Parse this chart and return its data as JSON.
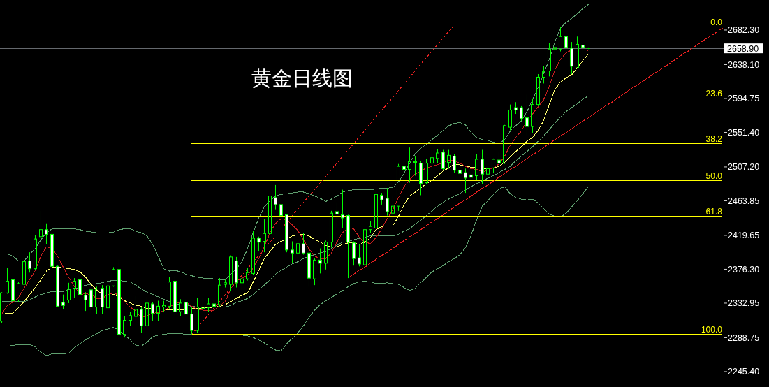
{
  "chart_data": {
    "type": "candlestick",
    "title": "黄金日线图",
    "tick_labels": "y",
    "color": "#00ff00",
    "categories": [
      null,
      null,
      null,
      null,
      null,
      null,
      null,
      null,
      null,
      null,
      null,
      null,
      null,
      null,
      null,
      null,
      null,
      null,
      null,
      null,
      null,
      null,
      null,
      null,
      null,
      null,
      null,
      null,
      null,
      null,
      null,
      null,
      null,
      null,
      null,
      null,
      null,
      null,
      null,
      null,
      null,
      null,
      null,
      null,
      null,
      null,
      null,
      null,
      null,
      null,
      null,
      null,
      null,
      null,
      null,
      null,
      null,
      null,
      null,
      null,
      null,
      null,
      null,
      null,
      null,
      null,
      null,
      null,
      null,
      null,
      null,
      null,
      null,
      null,
      null,
      null,
      null,
      null,
      null,
      null,
      null,
      null,
      null,
      null,
      null,
      null,
      null,
      null,
      null,
      null,
      null,
      null,
      null,
      null,
      null,
      null,
      null,
      null,
      null,
      null,
      null,
      null,
      null,
      null,
      null,
      null,
      null,
      null,
      null,
      null,
      null,
      null,
      null,
      null,
      null,
      null,
      null,
      null,
      null,
      null,
      null,
      null,
      null,
      null,
      null,
      null,
      null,
      null,
      null,
      null
    ],
    "ohlc": [
      [
        2310,
        2347,
        2307,
        2346
      ],
      [
        2346,
        2378,
        2345,
        2361
      ],
      [
        2363,
        2365,
        2334,
        2336
      ],
      [
        2337,
        2360,
        2334,
        2358
      ],
      [
        2357,
        2391,
        2356,
        2386
      ],
      [
        2387,
        2398,
        2372,
        2377
      ],
      [
        2377,
        2420,
        2375,
        2415
      ],
      [
        2418,
        2451,
        2405,
        2427
      ],
      [
        2427,
        2435,
        2408,
        2421
      ],
      [
        2421,
        2427,
        2375,
        2380
      ],
      [
        2380,
        2381,
        2328,
        2329
      ],
      [
        2334,
        2344,
        2325,
        2330
      ],
      [
        2337,
        2359,
        2333,
        2351
      ],
      [
        2352,
        2365,
        2340,
        2361
      ],
      [
        2363,
        2365,
        2335,
        2344
      ],
      [
        2343,
        2347,
        2323,
        2337
      ],
      [
        2350,
        2353,
        2320,
        2328
      ],
      [
        2328,
        2354,
        2319,
        2351
      ],
      [
        2352,
        2356,
        2319,
        2328
      ],
      [
        2327,
        2359,
        2325,
        2355
      ],
      [
        2355,
        2379,
        2354,
        2376
      ],
      [
        2376,
        2389,
        2287,
        2293
      ],
      [
        2293,
        2316,
        2289,
        2311
      ],
      [
        2311,
        2322,
        2304,
        2317
      ],
      [
        2316,
        2342,
        2311,
        2325
      ],
      [
        2325,
        2328,
        2295,
        2304
      ],
      [
        2304,
        2341,
        2302,
        2333
      ],
      [
        2332,
        2334,
        2310,
        2320
      ],
      [
        2320,
        2336,
        2310,
        2329
      ],
      [
        2328,
        2336,
        2322,
        2330
      ],
      [
        2329,
        2366,
        2326,
        2360
      ],
      [
        2361,
        2368,
        2316,
        2322
      ],
      [
        2322,
        2338,
        2316,
        2333
      ],
      [
        2334,
        2338,
        2315,
        2319
      ],
      [
        2319,
        2328,
        2293,
        2298
      ],
      [
        2298,
        2340,
        2295,
        2328
      ],
      [
        2326,
        2340,
        2322,
        2328
      ],
      [
        2327,
        2340,
        2322,
        2332
      ],
      [
        2332,
        2337,
        2325,
        2329
      ],
      [
        2331,
        2365,
        2328,
        2356
      ],
      [
        2357,
        2363,
        2353,
        2359
      ],
      [
        2357,
        2394,
        2348,
        2392
      ],
      [
        2387,
        2392,
        2353,
        2359
      ],
      [
        2359,
        2369,
        2350,
        2364
      ],
      [
        2364,
        2378,
        2362,
        2372
      ],
      [
        2371,
        2425,
        2369,
        2416
      ],
      [
        2416,
        2418,
        2399,
        2411
      ],
      [
        2412,
        2441,
        2398,
        2422
      ],
      [
        2422,
        2471,
        2420,
        2470
      ],
      [
        2468,
        2484,
        2453,
        2459
      ],
      [
        2459,
        2476,
        2442,
        2445
      ],
      [
        2446,
        2447,
        2398,
        2401
      ],
      [
        2401,
        2412,
        2384,
        2397
      ],
      [
        2397,
        2412,
        2388,
        2409
      ],
      [
        2409,
        2423,
        2395,
        2397
      ],
      [
        2397,
        2401,
        2354,
        2365
      ],
      [
        2364,
        2390,
        2356,
        2388
      ],
      [
        2388,
        2403,
        2371,
        2384
      ],
      [
        2384,
        2413,
        2376,
        2411
      ],
      [
        2411,
        2451,
        2404,
        2448
      ],
      [
        2450,
        2462,
        2429,
        2447
      ],
      [
        2446,
        2478,
        2429,
        2442
      ],
      [
        2445,
        2446,
        2365,
        2411
      ],
      [
        2410,
        2412,
        2381,
        2390
      ],
      [
        2391,
        2408,
        2380,
        2383
      ],
      [
        2382,
        2430,
        2381,
        2427
      ],
      [
        2427,
        2438,
        2423,
        2431
      ],
      [
        2429,
        2478,
        2424,
        2472
      ],
      [
        2471,
        2474,
        2459,
        2465
      ],
      [
        2467,
        2480,
        2445,
        2450
      ],
      [
        2448,
        2471,
        2445,
        2457
      ],
      [
        2457,
        2511,
        2451,
        2508
      ],
      [
        2508,
        2515,
        2487,
        2504
      ],
      [
        2504,
        2532,
        2487,
        2514
      ],
      [
        2513,
        2521,
        2496,
        2514
      ],
      [
        2512,
        2515,
        2471,
        2486
      ],
      [
        2487,
        2517,
        2485,
        2512
      ],
      [
        2512,
        2529,
        2503,
        2519
      ],
      [
        2518,
        2530,
        2512,
        2525
      ],
      [
        2526,
        2529,
        2503,
        2505
      ],
      [
        2513,
        2529,
        2505,
        2522
      ],
      [
        2521,
        2524,
        2500,
        2503
      ],
      [
        2503,
        2511,
        2489,
        2499
      ],
      [
        2500,
        2505,
        2474,
        2493
      ],
      [
        2497,
        2500,
        2472,
        2494
      ],
      [
        2496,
        2524,
        2491,
        2517
      ],
      [
        2517,
        2529,
        2485,
        2498
      ],
      [
        2498,
        2509,
        2487,
        2505
      ],
      [
        2506,
        2518,
        2499,
        2517
      ],
      [
        2516,
        2527,
        2502,
        2512
      ],
      [
        2512,
        2561,
        2511,
        2560
      ],
      [
        2558,
        2587,
        2554,
        2580
      ],
      [
        2583,
        2590,
        2575,
        2580
      ],
      [
        2583,
        2585,
        2566,
        2569
      ],
      [
        2570,
        2600,
        2547,
        2559
      ],
      [
        2559,
        2594,
        2551,
        2587
      ],
      [
        2587,
        2626,
        2585,
        2622
      ],
      [
        2622,
        2636,
        2614,
        2629
      ],
      [
        2630,
        2666,
        2623,
        2658
      ],
      [
        2658,
        2673,
        2650,
        2660
      ],
      [
        2658,
        2686,
        2655,
        2674
      ],
      [
        2674,
        2676,
        2658,
        2660
      ],
      [
        2659,
        2667,
        2626,
        2636
      ],
      [
        2634,
        2674,
        2633,
        2664
      ],
      [
        2663,
        2666,
        2655,
        2660
      ],
      [
        2659,
        2660,
        2658,
        2658.9
      ],
      null,
      null,
      null,
      null,
      null,
      null,
      null,
      null,
      null,
      null,
      null,
      null,
      null,
      null,
      null,
      null,
      null,
      null,
      null,
      null,
      null,
      null,
      null,
      null
    ],
    "series": [
      {
        "type": "line",
        "color": "#5e9e6e",
        "values": [
          2396,
          2396,
          2393,
          2387,
          2387,
          2395,
          2403,
          2414,
          2423,
          2428,
          2428,
          2428,
          2428,
          2428,
          2427,
          2425,
          2424,
          2423,
          2423,
          2423,
          2424,
          2427,
          2428,
          2428,
          2425,
          2423,
          2419,
          2408,
          2393,
          2377,
          2374,
          2375,
          2373,
          2370,
          2368,
          2366,
          2365,
          2365,
          2364,
          2363,
          2363,
          2370,
          2377,
          2386,
          2403,
          2423,
          2442,
          2456,
          2464,
          2470,
          2472,
          2473,
          2474,
          2475,
          2475,
          2473,
          2470,
          2467,
          2463,
          2466,
          2470,
          2475,
          2477,
          2478,
          2478,
          2478,
          2478,
          2479,
          2480,
          2480,
          2481,
          2488,
          2499,
          2512,
          2524,
          2531,
          2536,
          2542,
          2548,
          2554,
          2560,
          2563,
          2564,
          2561,
          2551,
          2545,
          2542,
          2541,
          2539,
          2537,
          2542,
          2553,
          2560,
          2566,
          2578,
          2593,
          2609,
          2627,
          2645,
          2667,
          2685,
          2692,
          2697,
          2703,
          2710,
          2715,
          null,
          null,
          null,
          null,
          null,
          null,
          null,
          null,
          null,
          null,
          null,
          null,
          null,
          null,
          null,
          null,
          null,
          null,
          null,
          null,
          null,
          null,
          null,
          null
        ]
      },
      {
        "type": "line",
        "color": "#5e9e6e",
        "values": [
          2335,
          2335,
          2335,
          2335,
          2335,
          2337,
          2341,
          2344,
          2346,
          2348,
          2348,
          2348,
          2350,
          2352,
          2353,
          2356,
          2357,
          2358,
          2359,
          2361,
          2362,
          2362,
          2361,
          2360,
          2356,
          2351,
          2347,
          2344,
          2341,
          2338,
          2335,
          2333,
          2331,
          2330,
          2329,
          2328,
          2328,
          2328,
          2328,
          2328,
          2328,
          2330,
          2334,
          2336,
          2339,
          2344,
          2350,
          2356,
          2363,
          2370,
          2375,
          2379,
          2383,
          2386,
          2390,
          2393,
          2395,
          2397,
          2399,
          2403,
          2407,
          2411,
          2412,
          2414,
          2416,
          2417,
          2419,
          2419,
          2419,
          2419,
          2419,
          2421,
          2425,
          2428,
          2434,
          2439,
          2445,
          2451,
          2457,
          2462,
          2466,
          2470,
          2473,
          2478,
          2482,
          2486,
          2489,
          2493,
          2496,
          2500,
          2504,
          2508,
          2515,
          2521,
          2527,
          2533,
          2540,
          2547,
          2555,
          2563,
          2571,
          2578,
          2583,
          2588,
          2594,
          2598,
          null,
          null,
          null,
          null,
          null,
          null,
          null,
          null,
          null,
          null,
          null,
          null,
          null,
          null,
          null,
          null,
          null,
          null,
          null,
          null,
          null,
          null,
          null,
          null
        ]
      },
      {
        "type": "line",
        "color": "#5e9e6e",
        "values": [
          2278,
          2278,
          2279,
          2280,
          2280,
          2280,
          2277,
          2270,
          2266,
          2268,
          2268,
          2268,
          2269,
          2276,
          2281,
          2286,
          2290,
          2294,
          2298,
          2300,
          2302,
          2298,
          2292,
          2286,
          2279,
          2278,
          2283,
          2290,
          2292,
          2293,
          2294,
          2294,
          2294,
          2293,
          2293,
          2292,
          2292,
          2292,
          2292,
          2292,
          2292,
          2292,
          2292,
          2292,
          2291,
          2289,
          2286,
          2282,
          2277,
          2273,
          2272,
          2281,
          2288,
          2295,
          2304,
          2315,
          2324,
          2331,
          2336,
          2340,
          2345,
          2349,
          2354,
          2358,
          2360,
          2361,
          2360,
          2358,
          2358,
          2359,
          2358,
          2357,
          2353,
          2349,
          2352,
          2359,
          2366,
          2373,
          2377,
          2381,
          2386,
          2390,
          2395,
          2404,
          2420,
          2440,
          2457,
          2464,
          2472,
          2479,
          2482,
          2473,
          2468,
          2466,
          2465,
          2466,
          2461,
          2454,
          2447,
          2444,
          2443,
          2448,
          2456,
          2464,
          2473,
          2482,
          null,
          null,
          null,
          null,
          null,
          null,
          null,
          null,
          null,
          null,
          null,
          null,
          null,
          null,
          null,
          null,
          null,
          null,
          null,
          null,
          null,
          null,
          null,
          null
        ]
      },
      {
        "type": "line",
        "color": "#ffff70",
        "values": [
          2319,
          2320,
          2320,
          2327,
          2335,
          2344,
          2353,
          2363,
          2374,
          2379,
          2379,
          2378,
          2377,
          2376,
          2373,
          2366,
          2357,
          2350,
          2344,
          2343,
          2344,
          2341,
          2336,
          2333,
          2330,
          2329,
          2326,
          2326,
          2325,
          2325,
          2324,
          2324,
          2324,
          2325,
          2326,
          2326,
          2327,
          2327,
          2328,
          2329,
          2331,
          2335,
          2339,
          2343,
          2346,
          2360,
          2375,
          2390,
          2399,
          2408,
          2412,
          2415,
          2419,
          2420,
          2421,
          2419,
          2414,
          2411,
          2407,
          2405,
          2405,
          2408,
          2410,
          2410,
          2408,
          2411,
          2417,
          2427,
          2431,
          2432,
          2432,
          2444,
          2459,
          2470,
          2475,
          2480,
          2486,
          2490,
          2496,
          2502,
          2506,
          2511,
          2510,
          2508,
          2507,
          2506,
          2505,
          2505,
          2506,
          2508,
          2513,
          2520,
          2527,
          2533,
          2540,
          2545,
          2554,
          2567,
          2587,
          2606,
          2616,
          2621,
          2625,
          2634,
          2643,
          2652,
          null,
          null,
          null,
          null,
          null,
          null,
          null,
          null,
          null,
          null,
          null,
          null,
          null,
          null,
          null,
          null,
          null,
          null,
          null,
          null,
          null,
          null,
          null,
          null
        ]
      },
      {
        "type": "line",
        "color": "#c41e1e",
        "values": [
          2319,
          2330,
          2334,
          2340,
          2352,
          2363,
          2375,
          2393,
          2405,
          2403,
          2393,
          2379,
          2366,
          2354,
          2344,
          2345,
          2344,
          2339,
          2339,
          2344,
          2346,
          2343,
          2335,
          2328,
          2323,
          2314,
          2317,
          2320,
          2321,
          2323,
          2328,
          2332,
          2334,
          2334,
          2329,
          2325,
          2324,
          2323,
          2324,
          2330,
          2335,
          2352,
          2361,
          2365,
          2369,
          2378,
          2390,
          2405,
          2423,
          2435,
          2441,
          2439,
          2433,
          2426,
          2414,
          2402,
          2393,
          2390,
          2390,
          2397,
          2411,
          2423,
          2430,
          2428,
          2417,
          2411,
          2409,
          2417,
          2428,
          2441,
          2453,
          2468,
          2482,
          2491,
          2498,
          2502,
          2506,
          2508,
          2510,
          2512,
          2516,
          2515,
          2512,
          2508,
          2505,
          2504,
          2501,
          2503,
          2506,
          2511,
          2521,
          2535,
          2545,
          2553,
          2567,
          2575,
          2584,
          2593,
          2611,
          2631,
          2645,
          2653,
          2657,
          2657,
          2657,
          2656,
          null,
          null,
          null,
          null,
          null,
          null,
          null,
          null,
          null,
          null,
          null,
          null,
          null,
          null,
          null,
          null,
          null,
          null,
          null,
          null,
          null,
          null,
          null,
          null
        ]
      },
      {
        "type": "line",
        "name": "0.0",
        "color": "#ffff00",
        "values": [
          null,
          null,
          null,
          null,
          null,
          null,
          null,
          null,
          null,
          null,
          null,
          null,
          null,
          null,
          null,
          null,
          null,
          null,
          null,
          null,
          null,
          null,
          null,
          null,
          null,
          null,
          null,
          null,
          null,
          null,
          null,
          null,
          null,
          null,
          2686,
          2686,
          2686,
          2686,
          2686,
          2686,
          2686,
          2686,
          2686,
          2686,
          2686,
          2686,
          2686,
          2686,
          2686,
          2686,
          2686,
          2686,
          2686,
          2686,
          2686,
          2686,
          2686,
          2686,
          2686,
          2686,
          2686,
          2686,
          2686,
          2686,
          2686,
          2686,
          2686,
          2686,
          2686,
          2686,
          2686,
          2686,
          2686,
          2686,
          2686,
          2686,
          2686,
          2686,
          2686,
          2686,
          2686,
          2686,
          2686,
          2686,
          2686,
          2686,
          2686,
          2686,
          2686,
          2686,
          2686,
          2686,
          2686,
          2686,
          2686,
          2686,
          2686,
          2686,
          2686,
          2686,
          2686,
          2686,
          2686,
          2686,
          2686,
          2686,
          2686,
          2686,
          2686,
          2686,
          2686,
          2686,
          2686,
          2686,
          2686,
          2686,
          2686,
          2686,
          2686,
          2686,
          2686,
          2686,
          2686,
          2686,
          2686,
          2686,
          2686,
          2686,
          2686,
          2686
        ]
      },
      {
        "type": "line",
        "name": "23.6",
        "color": "#ffff00",
        "values": [
          null,
          null,
          null,
          null,
          null,
          null,
          null,
          null,
          null,
          null,
          null,
          null,
          null,
          null,
          null,
          null,
          null,
          null,
          null,
          null,
          null,
          null,
          null,
          null,
          null,
          null,
          null,
          null,
          null,
          null,
          null,
          null,
          null,
          null,
          2595,
          2595,
          2595,
          2595,
          2595,
          2595,
          2595,
          2595,
          2595,
          2595,
          2595,
          2595,
          2595,
          2595,
          2595,
          2595,
          2595,
          2595,
          2595,
          2595,
          2595,
          2595,
          2595,
          2595,
          2595,
          2595,
          2595,
          2595,
          2595,
          2595,
          2595,
          2595,
          2595,
          2595,
          2595,
          2595,
          2595,
          2595,
          2595,
          2595,
          2595,
          2595,
          2595,
          2595,
          2595,
          2595,
          2595,
          2595,
          2595,
          2595,
          2595,
          2595,
          2595,
          2595,
          2595,
          2595,
          2595,
          2595,
          2595,
          2595,
          2595,
          2595,
          2595,
          2595,
          2595,
          2595,
          2595,
          2595,
          2595,
          2595,
          2595,
          2595,
          2595,
          2595,
          2595,
          2595,
          2595,
          2595,
          2595,
          2595,
          2595,
          2595,
          2595,
          2595,
          2595,
          2595,
          2595,
          2595,
          2595,
          2595,
          2595,
          2595,
          2595,
          2595,
          2595,
          2595
        ]
      },
      {
        "type": "line",
        "name": "38.2",
        "color": "#ffff00",
        "values": [
          null,
          null,
          null,
          null,
          null,
          null,
          null,
          null,
          null,
          null,
          null,
          null,
          null,
          null,
          null,
          null,
          null,
          null,
          null,
          null,
          null,
          null,
          null,
          null,
          null,
          null,
          null,
          null,
          null,
          null,
          null,
          null,
          null,
          null,
          2537,
          2537,
          2537,
          2537,
          2537,
          2537,
          2537,
          2537,
          2537,
          2537,
          2537,
          2537,
          2537,
          2537,
          2537,
          2537,
          2537,
          2537,
          2537,
          2537,
          2537,
          2537,
          2537,
          2537,
          2537,
          2537,
          2537,
          2537,
          2537,
          2537,
          2537,
          2537,
          2537,
          2537,
          2537,
          2537,
          2537,
          2537,
          2537,
          2537,
          2537,
          2537,
          2537,
          2537,
          2537,
          2537,
          2537,
          2537,
          2537,
          2537,
          2537,
          2537,
          2537,
          2537,
          2537,
          2537,
          2537,
          2537,
          2537,
          2537,
          2537,
          2537,
          2537,
          2537,
          2537,
          2537,
          2537,
          2537,
          2537,
          2537,
          2537,
          2537,
          2537,
          2537,
          2537,
          2537,
          2537,
          2537,
          2537,
          2537,
          2537,
          2537,
          2537,
          2537,
          2537,
          2537,
          2537,
          2537,
          2537,
          2537,
          2537,
          2537,
          2537,
          2537,
          2537,
          2537
        ]
      },
      {
        "type": "line",
        "name": "50.0",
        "color": "#ffff00",
        "values": [
          null,
          null,
          null,
          null,
          null,
          null,
          null,
          null,
          null,
          null,
          null,
          null,
          null,
          null,
          null,
          null,
          null,
          null,
          null,
          null,
          null,
          null,
          null,
          null,
          null,
          null,
          null,
          null,
          null,
          null,
          null,
          null,
          null,
          null,
          2490,
          2490,
          2490,
          2490,
          2490,
          2490,
          2490,
          2490,
          2490,
          2490,
          2490,
          2490,
          2490,
          2490,
          2490,
          2490,
          2490,
          2490,
          2490,
          2490,
          2490,
          2490,
          2490,
          2490,
          2490,
          2490,
          2490,
          2490,
          2490,
          2490,
          2490,
          2490,
          2490,
          2490,
          2490,
          2490,
          2490,
          2490,
          2490,
          2490,
          2490,
          2490,
          2490,
          2490,
          2490,
          2490,
          2490,
          2490,
          2490,
          2490,
          2490,
          2490,
          2490,
          2490,
          2490,
          2490,
          2490,
          2490,
          2490,
          2490,
          2490,
          2490,
          2490,
          2490,
          2490,
          2490,
          2490,
          2490,
          2490,
          2490,
          2490,
          2490,
          2490,
          2490,
          2490,
          2490,
          2490,
          2490,
          2490,
          2490,
          2490,
          2490,
          2490,
          2490,
          2490,
          2490,
          2490,
          2490,
          2490,
          2490,
          2490,
          2490,
          2490,
          2490,
          2490,
          2490
        ]
      },
      {
        "type": "line",
        "name": "61.8",
        "color": "#ffff00",
        "values": [
          null,
          null,
          null,
          null,
          null,
          null,
          null,
          null,
          null,
          null,
          null,
          null,
          null,
          null,
          null,
          null,
          null,
          null,
          null,
          null,
          null,
          null,
          null,
          null,
          null,
          null,
          null,
          null,
          null,
          null,
          null,
          null,
          null,
          null,
          2444,
          2444,
          2444,
          2444,
          2444,
          2444,
          2444,
          2444,
          2444,
          2444,
          2444,
          2444,
          2444,
          2444,
          2444,
          2444,
          2444,
          2444,
          2444,
          2444,
          2444,
          2444,
          2444,
          2444,
          2444,
          2444,
          2444,
          2444,
          2444,
          2444,
          2444,
          2444,
          2444,
          2444,
          2444,
          2444,
          2444,
          2444,
          2444,
          2444,
          2444,
          2444,
          2444,
          2444,
          2444,
          2444,
          2444,
          2444,
          2444,
          2444,
          2444,
          2444,
          2444,
          2444,
          2444,
          2444,
          2444,
          2444,
          2444,
          2444,
          2444,
          2444,
          2444,
          2444,
          2444,
          2444,
          2444,
          2444,
          2444,
          2444,
          2444,
          2444,
          2444,
          2444,
          2444,
          2444,
          2444,
          2444,
          2444,
          2444,
          2444,
          2444,
          2444,
          2444,
          2444,
          2444,
          2444,
          2444,
          2444,
          2444,
          2444,
          2444,
          2444,
          2444,
          2444,
          2444
        ]
      },
      {
        "type": "line",
        "name": "100.0",
        "color": "#ffff00",
        "values": [
          null,
          null,
          null,
          null,
          null,
          null,
          null,
          null,
          null,
          null,
          null,
          null,
          null,
          null,
          null,
          null,
          null,
          null,
          null,
          null,
          null,
          null,
          null,
          null,
          null,
          null,
          null,
          null,
          null,
          null,
          null,
          null,
          null,
          null,
          2293,
          2293,
          2293,
          2293,
          2293,
          2293,
          2293,
          2293,
          2293,
          2293,
          2293,
          2293,
          2293,
          2293,
          2293,
          2293,
          2293,
          2293,
          2293,
          2293,
          2293,
          2293,
          2293,
          2293,
          2293,
          2293,
          2293,
          2293,
          2293,
          2293,
          2293,
          2293,
          2293,
          2293,
          2293,
          2293,
          2293,
          2293,
          2293,
          2293,
          2293,
          2293,
          2293,
          2293,
          2293,
          2293,
          2293,
          2293,
          2293,
          2293,
          2293,
          2293,
          2293,
          2293,
          2293,
          2293,
          2293,
          2293,
          2293,
          2293,
          2293,
          2293,
          2293,
          2293,
          2293,
          2293,
          2293,
          2293,
          2293,
          2293,
          2293,
          2293,
          2293,
          2293,
          2293,
          2293,
          2293,
          2293,
          2293,
          2293,
          2293,
          2293,
          2293,
          2293,
          2293,
          2293,
          2293,
          2293,
          2293,
          2293,
          2293,
          2293,
          2293,
          2293,
          2293,
          2293
        ]
      },
      {
        "type": "line",
        "color": "#e42020",
        "values": [
          null,
          null,
          null,
          null,
          null,
          null,
          null,
          null,
          null,
          null,
          null,
          null,
          null,
          null,
          null,
          null,
          null,
          null,
          null,
          null,
          null,
          null,
          null,
          null,
          null,
          null,
          null,
          null,
          null,
          null,
          null,
          null,
          null,
          null,
          null,
          null,
          null,
          null,
          null,
          null,
          null,
          null,
          null,
          null,
          null,
          null,
          null,
          null,
          null,
          null,
          null,
          null,
          null,
          null,
          null,
          null,
          null,
          null,
          null,
          null,
          null,
          null,
          2365,
          2370,
          2375,
          2379,
          2384,
          2389,
          2394,
          2398,
          2403,
          2408,
          2413,
          2418,
          2422,
          2427,
          2432,
          2437,
          2441,
          2446,
          2451,
          2456,
          2461,
          2465,
          2470,
          2475,
          2480,
          2484,
          2489,
          2494,
          2499,
          2504,
          2508,
          2513,
          2518,
          2523,
          2527,
          2532,
          2537,
          2542,
          2547,
          2551,
          2556,
          2561,
          2566,
          2570,
          2575,
          2580,
          2585,
          2589,
          2594,
          2599,
          2604,
          2609,
          2613,
          2618,
          2623,
          2628,
          2632,
          2637,
          2642,
          2647,
          2652,
          2656,
          2661,
          2666,
          2671,
          2675,
          2680,
          2685
        ]
      },
      {
        "type": "line",
        "line_style": "dashed",
        "color": "#e42020",
        "values": [
          null,
          null,
          null,
          null,
          null,
          null,
          null,
          null,
          null,
          null,
          null,
          null,
          null,
          null,
          null,
          null,
          null,
          null,
          null,
          null,
          null,
          null,
          null,
          null,
          null,
          null,
          null,
          null,
          null,
          null,
          null,
          null,
          null,
          null,
          2293,
          2301,
          2310,
          2318,
          2327,
          2335,
          2344,
          2352,
          2360,
          2369,
          2377,
          2386,
          2394,
          2403,
          2411,
          2419,
          2428,
          2436,
          2445,
          2453,
          2462,
          2470,
          2478,
          2487,
          2495,
          2504,
          2512,
          2521,
          2529,
          2537,
          2546,
          2554,
          2563,
          2571,
          2580,
          2588,
          2596,
          2605,
          2613,
          2622,
          2630,
          2639,
          2647,
          2655,
          2664,
          2672,
          2681,
          2689,
          null,
          null,
          null,
          null,
          null,
          null,
          null,
          null,
          null,
          null,
          null,
          null,
          null,
          null,
          null,
          null,
          null,
          null,
          null,
          null,
          null,
          null,
          null,
          null,
          null,
          null,
          null,
          null,
          null,
          null,
          null,
          null,
          null,
          null,
          null,
          null,
          null,
          null,
          null,
          null,
          null,
          null,
          null,
          null,
          null,
          null,
          null,
          null
        ]
      }
    ],
    "ylim": [
      2225.7,
      2720.7
    ],
    "yticks": [
      {
        "value": 2682.3,
        "label": "2682.30"
      },
      {
        "value": 2638.1,
        "label": "2638.10"
      },
      {
        "value": 2594.75,
        "label": "2594.75"
      },
      {
        "value": 2551.4,
        "label": "2551.40"
      },
      {
        "value": 2507.2,
        "label": "2507.20"
      },
      {
        "value": 2463.85,
        "label": "2463.85"
      },
      {
        "value": 2419.65,
        "label": "2419.65"
      },
      {
        "value": 2376.3,
        "label": "2376.30"
      },
      {
        "value": 2332.95,
        "label": "2332.95"
      },
      {
        "value": 2288.75,
        "label": "2288.75"
      },
      {
        "value": 2245.4,
        "label": "2245.40"
      }
    ],
    "ref_lines": [
      {
        "axis": "y",
        "value": 2658.9,
        "label": "2658.90",
        "color": "#9aa0a8"
      }
    ]
  }
}
